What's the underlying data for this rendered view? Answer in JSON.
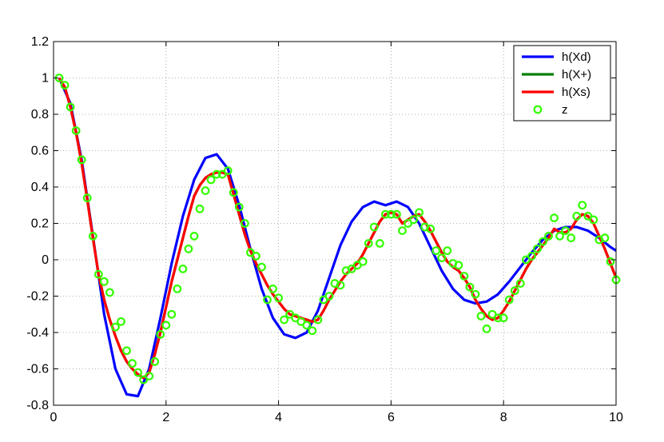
{
  "chart_data": {
    "type": "line",
    "title": "",
    "xlabel": "",
    "ylabel": "",
    "xlim": [
      0,
      10
    ],
    "ylim": [
      -0.8,
      1.2
    ],
    "grid": true,
    "legend_position": "top-right",
    "x_ticks": [
      0,
      2,
      4,
      6,
      8,
      10
    ],
    "y_ticks": [
      -0.8,
      -0.6,
      -0.4,
      -0.2,
      0,
      0.2,
      0.4,
      0.6,
      0.8,
      1,
      1.2
    ],
    "series": [
      {
        "name": "h(Xd)",
        "color": "#0000ff",
        "style": "line",
        "x": [
          0.1,
          0.3,
          0.5,
          0.7,
          0.9,
          1.1,
          1.3,
          1.5,
          1.7,
          1.9,
          2.1,
          2.3,
          2.5,
          2.7,
          2.9,
          3.1,
          3.3,
          3.5,
          3.7,
          3.9,
          4.1,
          4.3,
          4.5,
          4.7,
          4.9,
          5.1,
          5.3,
          5.5,
          5.7,
          5.9,
          6.1,
          6.3,
          6.5,
          6.7,
          6.9,
          7.1,
          7.3,
          7.5,
          7.7,
          7.9,
          8.1,
          8.3,
          8.5,
          8.7,
          8.9,
          9.1,
          9.3,
          9.5,
          9.7,
          9.9,
          10.0
        ],
        "y": [
          1.0,
          0.86,
          0.55,
          0.13,
          -0.3,
          -0.6,
          -0.74,
          -0.75,
          -0.6,
          -0.32,
          -0.02,
          0.24,
          0.44,
          0.56,
          0.58,
          0.5,
          0.3,
          0.06,
          -0.16,
          -0.32,
          -0.41,
          -0.43,
          -0.4,
          -0.28,
          -0.1,
          0.08,
          0.21,
          0.29,
          0.32,
          0.3,
          0.32,
          0.29,
          0.2,
          0.07,
          -0.06,
          -0.16,
          -0.22,
          -0.24,
          -0.23,
          -0.19,
          -0.12,
          -0.04,
          0.04,
          0.11,
          0.16,
          0.18,
          0.18,
          0.16,
          0.12,
          0.07,
          0.05
        ]
      },
      {
        "name": "h(X+)",
        "color": "#008000",
        "style": "line",
        "x": [
          0.1,
          0.2,
          0.3,
          0.4,
          0.5,
          0.6,
          0.7,
          0.8,
          0.9,
          1.0,
          1.1,
          1.2,
          1.3,
          1.4,
          1.5,
          1.6,
          1.7,
          1.8,
          1.9,
          2.0,
          2.1,
          2.2,
          2.3,
          2.4,
          2.5,
          2.6,
          2.7,
          2.8,
          2.9,
          3.0,
          3.1,
          3.2,
          3.3,
          3.4,
          3.5,
          3.6,
          3.7,
          3.8,
          3.9,
          4.0,
          4.1,
          4.2,
          4.3,
          4.4,
          4.5,
          4.6,
          4.7,
          4.8,
          4.9,
          5.0,
          5.1,
          5.2,
          5.3,
          5.4,
          5.5,
          5.6,
          5.7,
          5.8,
          5.9,
          6.0,
          6.1,
          6.2,
          6.3,
          6.4,
          6.5,
          6.6,
          6.7,
          6.8,
          6.9,
          7.0,
          7.1,
          7.2,
          7.3,
          7.4,
          7.5,
          7.6,
          7.7,
          7.8,
          7.9,
          8.0,
          8.1,
          8.2,
          8.3,
          8.4,
          8.5,
          8.6,
          8.7,
          8.8,
          8.9,
          9.0,
          9.1,
          9.2,
          9.3,
          9.4,
          9.5,
          9.6,
          9.7,
          9.8,
          9.9,
          10.0
        ],
        "y": [
          1.0,
          0.95,
          0.84,
          0.7,
          0.53,
          0.33,
          0.12,
          -0.08,
          -0.22,
          -0.33,
          -0.42,
          -0.5,
          -0.56,
          -0.6,
          -0.63,
          -0.65,
          -0.62,
          -0.52,
          -0.4,
          -0.26,
          -0.12,
          0.0,
          0.12,
          0.24,
          0.35,
          0.41,
          0.45,
          0.47,
          0.48,
          0.48,
          0.47,
          0.36,
          0.25,
          0.14,
          0.05,
          -0.02,
          -0.08,
          -0.14,
          -0.19,
          -0.23,
          -0.27,
          -0.3,
          -0.31,
          -0.32,
          -0.33,
          -0.34,
          -0.33,
          -0.28,
          -0.22,
          -0.17,
          -0.12,
          -0.08,
          -0.05,
          -0.02,
          0.03,
          0.09,
          0.15,
          0.21,
          0.25,
          0.26,
          0.25,
          0.2,
          0.22,
          0.24,
          0.25,
          0.21,
          0.16,
          0.1,
          0.04,
          -0.01,
          -0.04,
          -0.06,
          -0.1,
          -0.15,
          -0.22,
          -0.27,
          -0.31,
          -0.33,
          -0.32,
          -0.28,
          -0.23,
          -0.17,
          -0.11,
          -0.05,
          0.0,
          0.04,
          0.08,
          0.12,
          0.17,
          0.15,
          0.15,
          0.17,
          0.22,
          0.25,
          0.24,
          0.2,
          0.13,
          0.06,
          -0.02,
          -0.1
        ]
      },
      {
        "name": "h(Xs)",
        "color": "#ff0000",
        "style": "line",
        "x": [
          0.1,
          0.2,
          0.3,
          0.4,
          0.5,
          0.6,
          0.7,
          0.8,
          0.9,
          1.0,
          1.1,
          1.2,
          1.3,
          1.4,
          1.5,
          1.6,
          1.7,
          1.8,
          1.9,
          2.0,
          2.1,
          2.2,
          2.3,
          2.4,
          2.5,
          2.6,
          2.7,
          2.8,
          2.9,
          3.0,
          3.1,
          3.2,
          3.3,
          3.4,
          3.5,
          3.6,
          3.7,
          3.8,
          3.9,
          4.0,
          4.1,
          4.2,
          4.3,
          4.4,
          4.5,
          4.6,
          4.7,
          4.8,
          4.9,
          5.0,
          5.1,
          5.2,
          5.3,
          5.4,
          5.5,
          5.6,
          5.7,
          5.8,
          5.9,
          6.0,
          6.1,
          6.2,
          6.3,
          6.4,
          6.5,
          6.6,
          6.7,
          6.8,
          6.9,
          7.0,
          7.1,
          7.2,
          7.3,
          7.4,
          7.5,
          7.6,
          7.7,
          7.8,
          7.9,
          8.0,
          8.1,
          8.2,
          8.3,
          8.4,
          8.5,
          8.6,
          8.7,
          8.8,
          8.9,
          9.0,
          9.1,
          9.2,
          9.3,
          9.4,
          9.5,
          9.6,
          9.7,
          9.8,
          9.9,
          10.0
        ],
        "y": [
          1.0,
          0.95,
          0.84,
          0.7,
          0.53,
          0.33,
          0.12,
          -0.08,
          -0.22,
          -0.33,
          -0.42,
          -0.5,
          -0.56,
          -0.6,
          -0.63,
          -0.65,
          -0.62,
          -0.52,
          -0.4,
          -0.26,
          -0.12,
          0.0,
          0.12,
          0.24,
          0.35,
          0.41,
          0.45,
          0.47,
          0.48,
          0.48,
          0.47,
          0.36,
          0.25,
          0.14,
          0.05,
          -0.02,
          -0.08,
          -0.14,
          -0.19,
          -0.23,
          -0.27,
          -0.3,
          -0.31,
          -0.32,
          -0.33,
          -0.34,
          -0.33,
          -0.28,
          -0.22,
          -0.17,
          -0.12,
          -0.08,
          -0.05,
          -0.02,
          0.03,
          0.09,
          0.15,
          0.21,
          0.25,
          0.26,
          0.25,
          0.2,
          0.22,
          0.24,
          0.25,
          0.21,
          0.16,
          0.1,
          0.04,
          -0.01,
          -0.04,
          -0.06,
          -0.1,
          -0.15,
          -0.22,
          -0.27,
          -0.31,
          -0.33,
          -0.32,
          -0.28,
          -0.23,
          -0.17,
          -0.11,
          -0.05,
          0.0,
          0.04,
          0.08,
          0.12,
          0.17,
          0.15,
          0.15,
          0.17,
          0.22,
          0.25,
          0.24,
          0.2,
          0.13,
          0.06,
          -0.02,
          -0.1
        ]
      },
      {
        "name": "z",
        "color": "#33ff00",
        "style": "markers",
        "x": [
          0.1,
          0.2,
          0.3,
          0.4,
          0.5,
          0.6,
          0.7,
          0.8,
          0.9,
          1.0,
          1.1,
          1.2,
          1.3,
          1.4,
          1.5,
          1.6,
          1.7,
          1.8,
          1.9,
          2.0,
          2.1,
          2.2,
          2.3,
          2.4,
          2.5,
          2.6,
          2.7,
          2.8,
          2.9,
          3.0,
          3.1,
          3.2,
          3.3,
          3.4,
          3.5,
          3.6,
          3.7,
          3.8,
          3.9,
          4.0,
          4.1,
          4.2,
          4.3,
          4.4,
          4.5,
          4.6,
          4.7,
          4.8,
          4.9,
          5.0,
          5.1,
          5.2,
          5.3,
          5.4,
          5.5,
          5.6,
          5.7,
          5.8,
          5.9,
          6.0,
          6.1,
          6.2,
          6.3,
          6.4,
          6.5,
          6.6,
          6.7,
          6.8,
          6.9,
          7.0,
          7.1,
          7.2,
          7.3,
          7.4,
          7.5,
          7.6,
          7.7,
          7.8,
          7.9,
          8.0,
          8.1,
          8.2,
          8.3,
          8.4,
          8.5,
          8.6,
          8.7,
          8.8,
          8.9,
          9.0,
          9.1,
          9.2,
          9.3,
          9.4,
          9.5,
          9.6,
          9.7,
          9.8,
          9.9,
          10.0
        ],
        "y": [
          1.0,
          0.96,
          0.84,
          0.71,
          0.55,
          0.34,
          0.13,
          -0.08,
          -0.12,
          -0.18,
          -0.37,
          -0.34,
          -0.5,
          -0.57,
          -0.62,
          -0.66,
          -0.64,
          -0.56,
          -0.41,
          -0.36,
          -0.3,
          -0.16,
          -0.05,
          0.06,
          0.13,
          0.28,
          0.38,
          0.44,
          0.47,
          0.47,
          0.49,
          0.37,
          0.29,
          0.2,
          0.04,
          0.02,
          -0.04,
          -0.22,
          -0.16,
          -0.21,
          -0.33,
          -0.3,
          -0.32,
          -0.34,
          -0.36,
          -0.39,
          -0.33,
          -0.22,
          -0.2,
          -0.13,
          -0.14,
          -0.06,
          -0.05,
          -0.03,
          -0.01,
          0.09,
          0.18,
          0.09,
          0.25,
          0.25,
          0.25,
          0.16,
          0.2,
          0.22,
          0.26,
          0.18,
          0.17,
          0.05,
          0.01,
          0.05,
          -0.02,
          -0.03,
          -0.09,
          -0.15,
          -0.19,
          -0.31,
          -0.38,
          -0.3,
          -0.32,
          -0.32,
          -0.22,
          -0.17,
          -0.13,
          0.0,
          0.02,
          0.06,
          0.1,
          0.13,
          0.23,
          0.13,
          0.16,
          0.12,
          0.24,
          0.3,
          0.24,
          0.22,
          0.11,
          0.12,
          -0.01,
          -0.11
        ]
      }
    ]
  }
}
